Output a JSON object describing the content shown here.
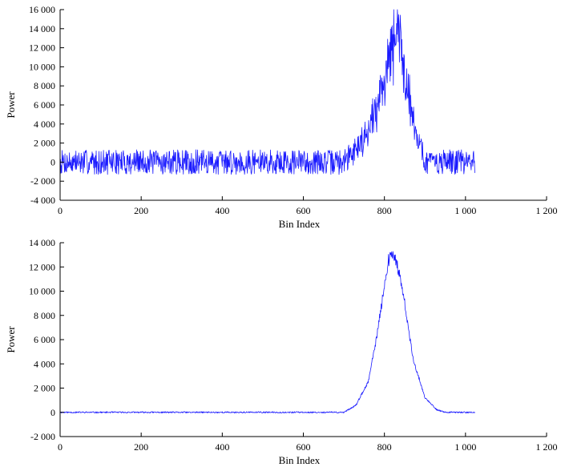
{
  "colors": {
    "series": "#1a1aff",
    "axis": "#000000"
  },
  "chart_data": [
    {
      "type": "line",
      "id": "top",
      "xlabel": "Bin Index",
      "ylabel": "Power",
      "xlim": [
        0,
        1200
      ],
      "ylim": [
        -4000,
        16000
      ],
      "xticks": [
        0,
        200,
        400,
        600,
        800,
        1000,
        1200
      ],
      "xtick_labels": [
        "0",
        "200",
        "400",
        "600",
        "800",
        "1 000",
        "1 200"
      ],
      "yticks": [
        -4000,
        -2000,
        0,
        2000,
        4000,
        6000,
        8000,
        10000,
        12000,
        14000,
        16000
      ],
      "ytick_labels": [
        "-4 000",
        "-2 000",
        "0",
        "2 000",
        "4 000",
        "6 000",
        "8 000",
        "10 000",
        "12 000",
        "14 000",
        "16 000"
      ],
      "grid": false,
      "series": [
        {
          "x_range": [
            0,
            1023
          ],
          "peak_center": 825,
          "peak_height": 12500,
          "peak_width": 55,
          "noise_amplitude": 1300,
          "peak_noise_fraction": 0.28,
          "seed": 7,
          "envelope": [
            [
              0,
              0
            ],
            [
              100,
              0
            ],
            [
              200,
              0
            ],
            [
              300,
              0
            ],
            [
              400,
              0
            ],
            [
              500,
              0
            ],
            [
              600,
              0
            ],
            [
              700,
              0
            ],
            [
              750,
              2500
            ],
            [
              780,
              5500
            ],
            [
              800,
              9000
            ],
            [
              820,
              12000
            ],
            [
              830,
              14500
            ],
            [
              840,
              12000
            ],
            [
              860,
              7000
            ],
            [
              880,
              3000
            ],
            [
              900,
              0
            ],
            [
              950,
              0
            ],
            [
              1023,
              0
            ]
          ]
        }
      ]
    },
    {
      "type": "line",
      "id": "bottom",
      "xlabel": "Bin Index",
      "ylabel": "Power",
      "xlim": [
        0,
        1200
      ],
      "ylim": [
        -2000,
        14000
      ],
      "xticks": [
        0,
        200,
        400,
        600,
        800,
        1000,
        1200
      ],
      "xtick_labels": [
        "0",
        "200",
        "400",
        "600",
        "800",
        "1 000",
        "1 200"
      ],
      "yticks": [
        -2000,
        0,
        2000,
        4000,
        6000,
        8000,
        10000,
        12000,
        14000
      ],
      "ytick_labels": [
        "-2 000",
        "0",
        "2 000",
        "4 000",
        "6 000",
        "8 000",
        "10 000",
        "12 000",
        "14 000"
      ],
      "grid": false,
      "series": [
        {
          "x_range": [
            0,
            1023
          ],
          "peak_center": 820,
          "peak_height": 12500,
          "peak_width": 50,
          "noise_amplitude": 60,
          "peak_noise_fraction": 0.04,
          "seed": 11,
          "envelope": [
            [
              0,
              0
            ],
            [
              700,
              0
            ],
            [
              730,
              600
            ],
            [
              760,
              2500
            ],
            [
              780,
              6000
            ],
            [
              800,
              10500
            ],
            [
              810,
              12500
            ],
            [
              820,
              13200
            ],
            [
              830,
              12500
            ],
            [
              850,
              9000
            ],
            [
              870,
              4500
            ],
            [
              900,
              1200
            ],
            [
              930,
              200
            ],
            [
              950,
              0
            ],
            [
              1023,
              0
            ]
          ]
        }
      ]
    }
  ]
}
